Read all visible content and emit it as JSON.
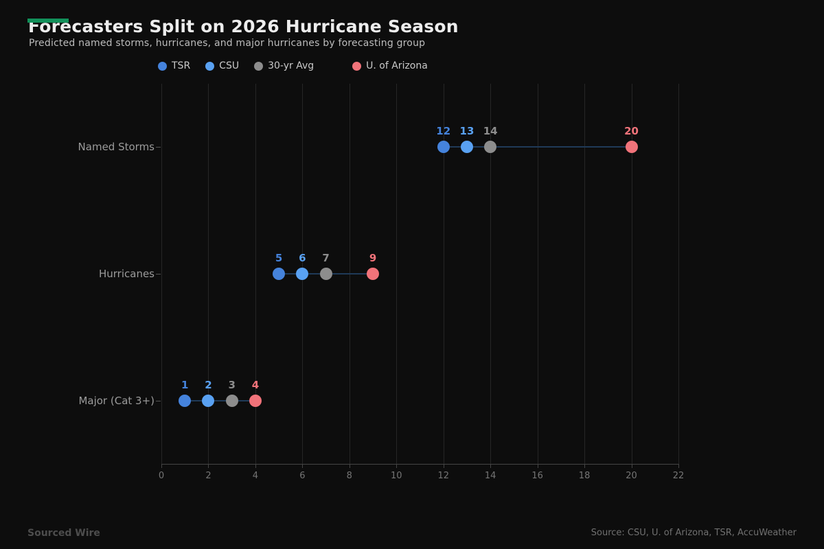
{
  "header": {
    "title": "Forecasters Split on 2026 Hurricane Season",
    "subtitle": "Predicted named storms, hurricanes, and major hurricanes by forecasting group",
    "accent_color": "#12905a"
  },
  "chart_data": {
    "type": "scatter",
    "variant": "horizontal-dot-plot",
    "title": "Forecasters Split on 2026 Hurricane Season",
    "subtitle": "Predicted named storms, hurricanes, and major hurricanes by forecasting group",
    "categories": [
      "Named Storms",
      "Hurricanes",
      "Major (Cat 3+)"
    ],
    "series": [
      {
        "name": "TSR",
        "color": "#4583dc",
        "values": [
          12,
          5,
          1
        ]
      },
      {
        "name": "CSU",
        "color": "#59a1f2",
        "values": [
          13,
          6,
          2
        ]
      },
      {
        "name": "30-yr Avg",
        "color": "#8d8d8d",
        "values": [
          14,
          7,
          3
        ]
      },
      {
        "name": "U. of Arizona",
        "color": "#f1737a",
        "values": [
          20,
          9,
          4
        ]
      }
    ],
    "xlim": [
      0,
      22
    ],
    "x_ticks": [
      0,
      2,
      4,
      6,
      8,
      10,
      12,
      14,
      16,
      18,
      20,
      22
    ],
    "grid": "vertical-only",
    "legend_position": "top",
    "connector_color": "#1f3a58",
    "background_color": "#0d0d0d"
  },
  "footer": {
    "brand": "Sourced Wire",
    "source": "Source: CSU, U. of Arizona, TSR, AccuWeather"
  }
}
